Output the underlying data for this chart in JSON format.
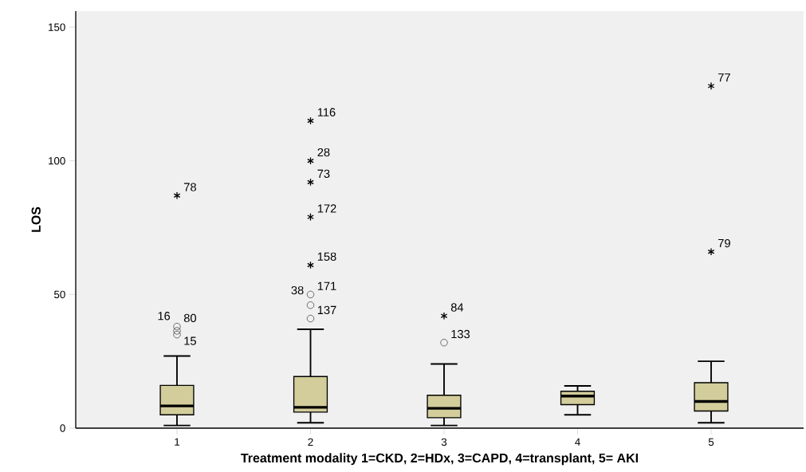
{
  "chart_data": {
    "type": "box",
    "categories": [
      "1",
      "2",
      "3",
      "4",
      "5"
    ],
    "xlabel": "Treatment modality 1=CKD, 2=HDx, 3=CAPD, 4=transplant, 5= AKI",
    "ylabel": "LOS",
    "ylim": [
      0,
      156
    ],
    "yticks": [
      0,
      50,
      100,
      150
    ],
    "color": "#d3cd9b",
    "boxes": [
      {
        "low": 1,
        "q1": 5,
        "median": 8.3,
        "q3": 16,
        "high": 27,
        "outliers": [
          38,
          36.4,
          35,
          87
        ]
      },
      {
        "low": 2,
        "q1": 6,
        "median": 7.8,
        "q3": 19.3,
        "high": 37,
        "outliers": [
          50,
          46,
          41,
          61,
          79,
          92,
          100,
          115
        ]
      },
      {
        "low": 1,
        "q1": 3.9,
        "median": 7.4,
        "q3": 12.3,
        "high": 24,
        "outliers": [
          32,
          42
        ]
      },
      {
        "low": 5,
        "q1": 8.8,
        "median": 12,
        "q3": 13.8,
        "high": 15.8
      },
      {
        "low": 2,
        "q1": 6.4,
        "median": 10,
        "q3": 17,
        "high": 25,
        "outliers": [
          66,
          128
        ]
      }
    ],
    "annotations": [
      "80",
      "16",
      "15",
      "78",
      "171",
      "38",
      "137",
      "158",
      "172",
      "73",
      "28",
      "116",
      "133",
      "84",
      "79",
      "77"
    ]
  }
}
